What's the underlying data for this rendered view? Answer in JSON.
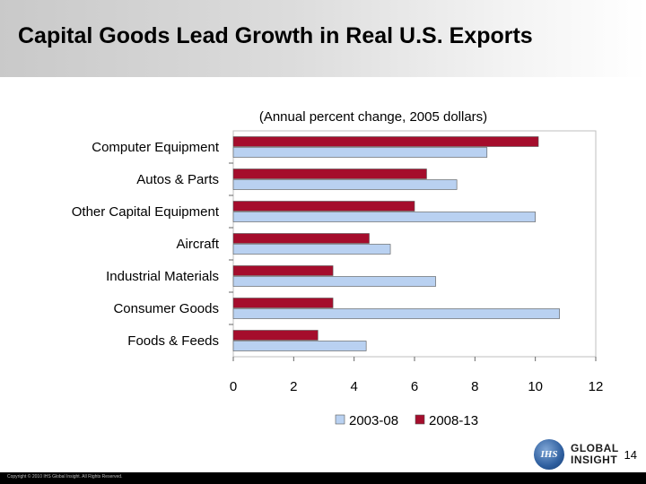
{
  "slide": {
    "title": "Capital Goods Lead Growth in Real U.S. Exports",
    "page_number": "14",
    "copyright": "Copyright © 2010 IHS Global Insight. All Rights Reserved.",
    "logo": {
      "seal_text": "IHS",
      "line1": "GLOBAL",
      "line2": "INSIGHT"
    }
  },
  "chart_data": {
    "type": "bar",
    "orientation": "horizontal",
    "subtitle": "(Annual percent change, 2005 dollars)",
    "categories": [
      "Computer Equipment",
      "Autos & Parts",
      "Other Capital Equipment",
      "Aircraft",
      "Industrial Materials",
      "Consumer Goods",
      "Foods & Feeds"
    ],
    "series": [
      {
        "name": "2003-08",
        "color": "#b9d1f1",
        "values": [
          8.4,
          7.4,
          10.0,
          5.2,
          6.7,
          10.8,
          4.4
        ]
      },
      {
        "name": "2008-13",
        "color": "#a50d2c",
        "values": [
          10.1,
          6.4,
          6.0,
          4.5,
          3.3,
          3.3,
          2.8
        ]
      }
    ],
    "xlim": [
      0,
      12
    ],
    "xticks": [
      0,
      2,
      4,
      6,
      8,
      10,
      12
    ],
    "grid": false,
    "legend_position": "bottom"
  }
}
